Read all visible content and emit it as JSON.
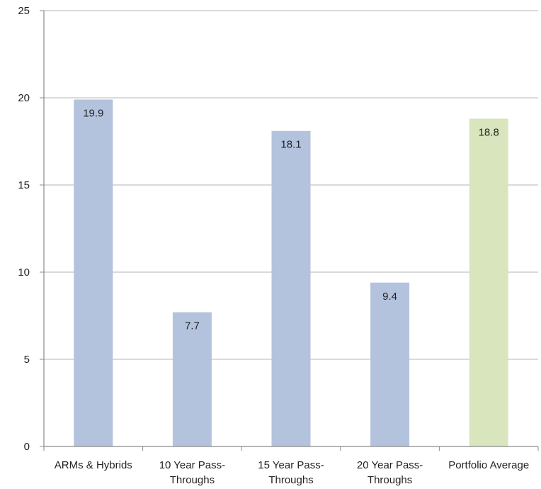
{
  "chart_data": {
    "type": "bar",
    "categories": [
      [
        "ARMs & Hybrids"
      ],
      [
        "10 Year Pass-",
        "Throughs"
      ],
      [
        "15 Year Pass-",
        "Throughs"
      ],
      [
        "20 Year Pass-",
        "Throughs"
      ],
      [
        "Portfolio Average"
      ]
    ],
    "values": [
      19.9,
      7.7,
      18.1,
      9.4,
      18.8
    ],
    "data_labels": [
      "19.9",
      "7.7",
      "18.1",
      "9.4",
      "18.8"
    ],
    "bar_colors": [
      "#b3c3de",
      "#b3c3de",
      "#b3c3de",
      "#b3c3de",
      "#d8e5bd"
    ],
    "ylim": [
      0,
      25
    ],
    "yticks": [
      0,
      5,
      10,
      15,
      20,
      25
    ],
    "grid": true,
    "title": "",
    "xlabel": "",
    "ylabel": ""
  },
  "colors": {
    "grid": "#c4c4c4",
    "axis": "#8a8a8a",
    "text": "#222222"
  }
}
